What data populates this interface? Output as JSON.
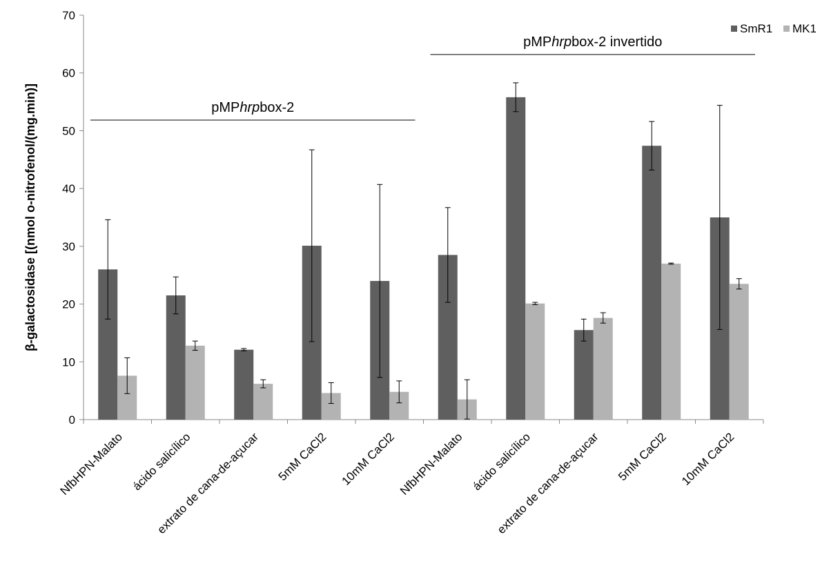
{
  "chart_data": {
    "type": "bar",
    "ylabel": "β-galactosidase [(nmol o-nitrofenol/(mg.min)]",
    "ylim": [
      0,
      70
    ],
    "yticks": [
      0,
      10,
      20,
      30,
      40,
      50,
      60,
      70
    ],
    "grid": false,
    "legend_position": "top-right",
    "categories": [
      "NfbHPN-Malato",
      "ácido salicílico",
      "extrato de cana-de-açucar",
      "5mM CaCl2",
      "10mM CaCl2",
      "NfbHPN-Malato",
      "ácido salicílico",
      "extrato de cana-de-açucar",
      "5mM CaCl2",
      "10mM CaCl2"
    ],
    "series": [
      {
        "name": "SmR1",
        "color": "#5f5f5f",
        "values": [
          26.0,
          21.5,
          12.1,
          30.1,
          24.0,
          28.5,
          55.8,
          15.5,
          47.4,
          35.0
        ],
        "errors": [
          8.6,
          3.2,
          0.2,
          16.6,
          16.7,
          8.2,
          2.5,
          1.9,
          4.2,
          19.4
        ]
      },
      {
        "name": "MK1",
        "color": "#b3b3b3",
        "values": [
          7.6,
          12.8,
          6.2,
          4.6,
          4.8,
          3.5,
          20.1,
          17.6,
          27.0,
          23.5
        ],
        "errors": [
          3.1,
          0.8,
          0.7,
          1.8,
          1.9,
          3.4,
          0.2,
          0.9,
          0.1,
          0.9
        ]
      }
    ],
    "group_annotations": [
      {
        "text_plain": "pMP",
        "text_italic": "hrp",
        "text_rest": "box-2",
        "categories": [
          0,
          4
        ]
      },
      {
        "text_plain": "pMP",
        "text_italic": "hrp",
        "text_rest": "box-2 invertido",
        "categories": [
          5,
          9
        ]
      }
    ]
  }
}
